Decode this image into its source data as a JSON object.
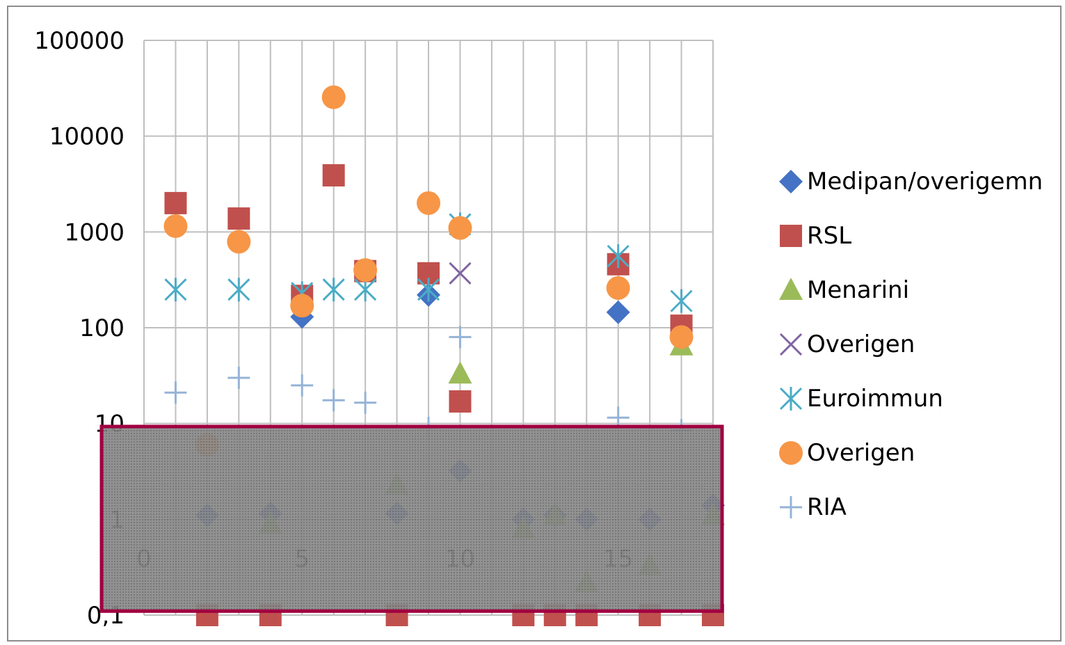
{
  "chart_data": {
    "type": "scatter",
    "title": "",
    "xlabel": "",
    "ylabel": "",
    "x_ticks": [
      0,
      5,
      10,
      15
    ],
    "xlim": [
      0,
      18
    ],
    "y_scale": "log",
    "y_ticks": [
      "100000",
      "10000",
      "1000",
      "100",
      "10",
      "1",
      "0,1"
    ],
    "y_tick_values": [
      100000,
      10000,
      1000,
      100,
      10,
      1,
      0.1
    ],
    "ylim": [
      0.1,
      100000
    ],
    "grid": true,
    "legend_position": "right",
    "series": [
      {
        "name": "Medipan/overigemn",
        "marker": "diamond",
        "color": "#4472C4",
        "points": [
          [
            2,
            1.1
          ],
          [
            4,
            1.15
          ],
          [
            5,
            130
          ],
          [
            8,
            1.15
          ],
          [
            9,
            220
          ],
          [
            10,
            3.2
          ],
          [
            12,
            1.0
          ],
          [
            13,
            1.1
          ],
          [
            14,
            1.0
          ],
          [
            15,
            145
          ],
          [
            16,
            1.0
          ],
          [
            18,
            1.4
          ]
        ]
      },
      {
        "name": "RSL",
        "marker": "square",
        "color": "#C0504D",
        "points": [
          [
            1,
            2000
          ],
          [
            2,
            0.1
          ],
          [
            3,
            1380
          ],
          [
            4,
            0.1
          ],
          [
            5,
            215
          ],
          [
            6,
            3900
          ],
          [
            7,
            390
          ],
          [
            8,
            0.1
          ],
          [
            9,
            370
          ],
          [
            10,
            17
          ],
          [
            12,
            0.1
          ],
          [
            13,
            0.1
          ],
          [
            14,
            0.1
          ],
          [
            15,
            460
          ],
          [
            16,
            0.1
          ],
          [
            17,
            105
          ],
          [
            18,
            0.1
          ]
        ]
      },
      {
        "name": "Menarini",
        "marker": "triangle",
        "color": "#9BBB59",
        "points": [
          [
            4,
            0.9
          ],
          [
            8,
            2.3
          ],
          [
            10,
            33
          ],
          [
            12,
            0.8
          ],
          [
            13,
            1.1
          ],
          [
            14,
            0.22
          ],
          [
            16,
            0.33
          ],
          [
            17,
            65
          ],
          [
            18,
            1.1
          ]
        ]
      },
      {
        "name": "Overigen",
        "marker": "x",
        "color": "#8064A2",
        "points": [
          [
            10,
            370
          ]
        ]
      },
      {
        "name": "Euroimmun",
        "marker": "asterisk",
        "color": "#4BACC6",
        "points": [
          [
            1,
            250
          ],
          [
            3,
            250
          ],
          [
            5,
            230
          ],
          [
            6,
            250
          ],
          [
            7,
            250
          ],
          [
            9,
            250
          ],
          [
            10,
            1200
          ],
          [
            15,
            560
          ],
          [
            17,
            190
          ]
        ]
      },
      {
        "name": "Overigen",
        "marker": "circle",
        "color": "#F79646",
        "points": [
          [
            1,
            1150
          ],
          [
            2,
            6.0
          ],
          [
            3,
            790
          ],
          [
            5,
            170
          ],
          [
            6,
            25500
          ],
          [
            7,
            400
          ],
          [
            9,
            2000
          ],
          [
            10,
            1100
          ],
          [
            15,
            260
          ],
          [
            17,
            80
          ]
        ]
      },
      {
        "name": "RIA",
        "marker": "plus",
        "color": "#95B3D7",
        "points": [
          [
            1,
            21
          ],
          [
            3,
            30
          ],
          [
            5,
            25
          ],
          [
            6,
            17.5
          ],
          [
            7,
            16.5
          ],
          [
            9,
            9.0
          ],
          [
            10,
            80
          ],
          [
            15,
            11.5
          ],
          [
            17,
            8.5
          ]
        ]
      }
    ],
    "overlay": {
      "type": "rectangle",
      "fill": "#7F7F7F",
      "border_color": "#A00040",
      "y_range": [
        0.11,
        9.3
      ]
    }
  }
}
